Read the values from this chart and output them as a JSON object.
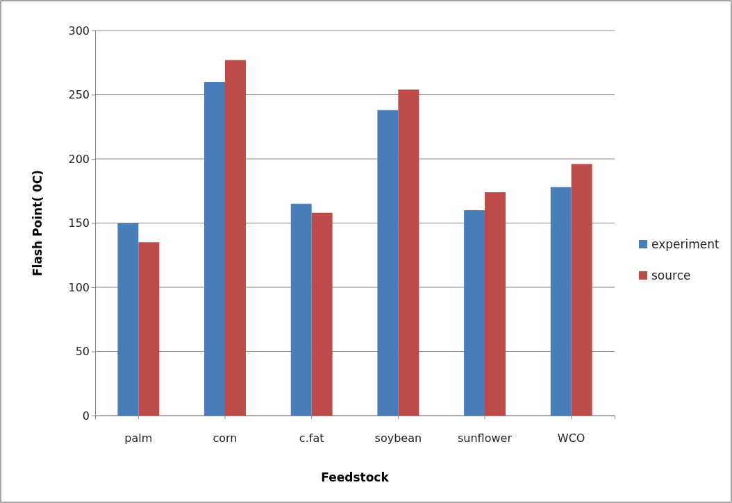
{
  "chart_data": {
    "type": "bar",
    "xlabel": "Feedstock",
    "ylabel": "Flash Point( 0C)",
    "categories": [
      "palm",
      "corn",
      "c.fat",
      "soybean",
      "sunflower",
      "WCO"
    ],
    "series": [
      {
        "name": "experiment",
        "color": "#4a7ebb",
        "values": [
          150,
          260,
          165,
          238,
          160,
          178
        ]
      },
      {
        "name": "source",
        "color": "#be4b48",
        "values": [
          135,
          277,
          158,
          254,
          174,
          196
        ]
      }
    ],
    "ylim": [
      0,
      300
    ],
    "yticks": [
      0,
      50,
      100,
      150,
      200,
      250,
      300
    ],
    "grid": "y",
    "legend": "right"
  }
}
